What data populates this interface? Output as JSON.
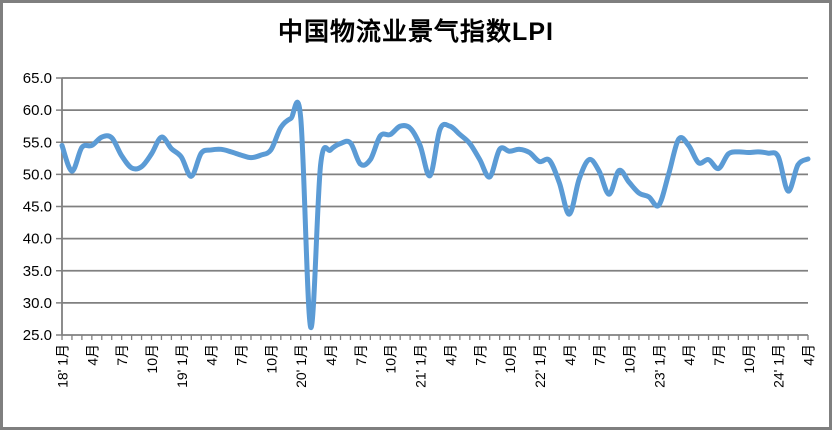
{
  "title": "中国物流业景气指数LPI",
  "colors": {
    "line": "#5B9BD5",
    "grid": "#808080",
    "axis": "#808080",
    "border": "#7F7F7F",
    "background": "#FFFFFF",
    "text": "#000000"
  },
  "chart_data": {
    "type": "line",
    "title": "中国物流业景气指数LPI",
    "smooth": true,
    "grid": "horizontal",
    "legend": "none",
    "ylim": [
      25,
      65
    ],
    "ytick_step": 5,
    "y_tick_labels": [
      "65.0",
      "60.0",
      "55.0",
      "50.0",
      "45.0",
      "40.0",
      "35.0",
      "30.0",
      "25.0"
    ],
    "x_start": "2018-01",
    "x_frequency": "monthly",
    "x_label_interval_months": 3,
    "x_tick_labels": [
      "18' 1月",
      "4月",
      "7月",
      "10月",
      "19' 1月",
      "4月",
      "7月",
      "10月",
      "20' 1月",
      "4月",
      "7月",
      "10月",
      "21' 1月",
      "4月",
      "7月",
      "10月",
      "22' 1月",
      "4月",
      "7月",
      "10月",
      "23' 1月",
      "4月",
      "7月",
      "10月",
      "24' 1月",
      "4月"
    ],
    "series": [
      {
        "name": "LPI",
        "values": [
          54.5,
          50.5,
          54.2,
          54.5,
          55.8,
          55.7,
          52.9,
          51.0,
          51.2,
          53.2,
          55.8,
          54.0,
          52.7,
          49.7,
          53.3,
          53.8,
          53.9,
          53.5,
          53.0,
          52.6,
          53.0,
          53.8,
          57.3,
          58.7,
          58.8,
          26.2,
          51.5,
          53.8,
          54.8,
          54.9,
          51.6,
          52.3,
          56.0,
          56.2,
          57.5,
          57.2,
          54.5,
          49.8,
          57.0,
          57.5,
          56.2,
          54.8,
          52.3,
          49.6,
          53.9,
          53.6,
          53.9,
          53.4,
          52.0,
          52.2,
          48.7,
          43.8,
          49.3,
          52.3,
          50.5,
          46.9,
          50.6,
          48.8,
          47.1,
          46.5,
          45.2,
          50.1,
          55.5,
          54.5,
          51.8,
          52.3,
          50.9,
          53.2,
          53.5,
          53.4,
          53.5,
          53.3,
          52.8,
          47.4,
          51.5,
          52.4
        ]
      }
    ]
  }
}
